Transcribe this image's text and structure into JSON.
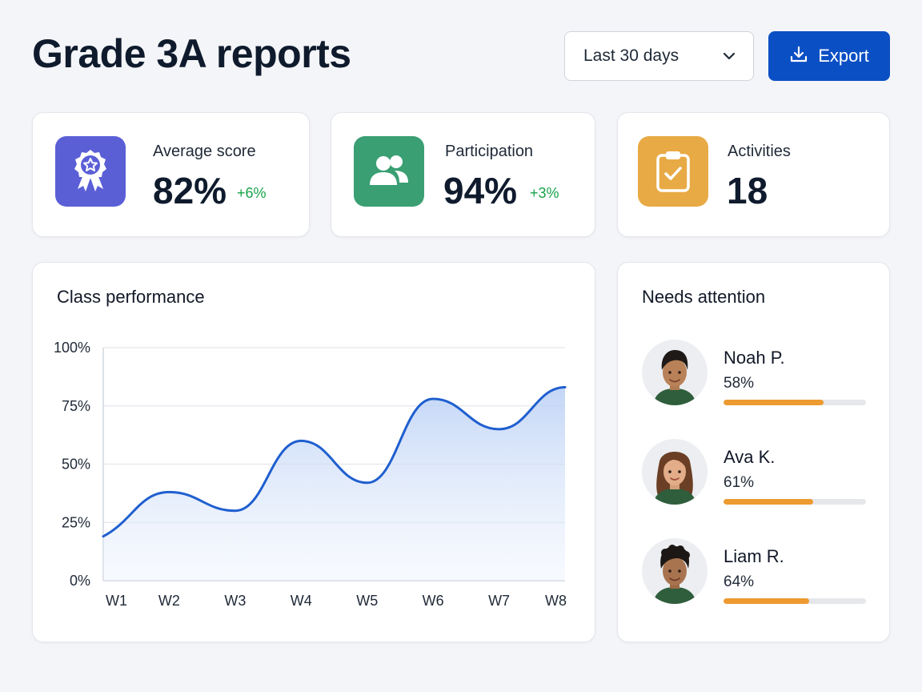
{
  "header": {
    "title": "Grade 3A reports",
    "range_select": "Last 30 days",
    "export_label": "Export"
  },
  "colors": {
    "primary": "#0b4fc4",
    "line": "#1f5fcf",
    "positive": "#16a34a",
    "bar": "#ed9a30"
  },
  "stats": [
    {
      "icon": "award-ribbon-icon",
      "icon_color": "#5b5fd6",
      "label": "Average score",
      "value": "82%",
      "delta": "+6%"
    },
    {
      "icon": "people-icon",
      "icon_color": "#3a9f73",
      "label": "Participation",
      "value": "94%",
      "delta": "+3%"
    },
    {
      "icon": "clipboard-check-icon",
      "icon_color": "#e8aa45",
      "label": "Activities",
      "value": "18"
    }
  ],
  "performance": {
    "title": "Class performance"
  },
  "chart_data": {
    "type": "area",
    "x": [
      "W1",
      "W2",
      "W3",
      "W4",
      "W5",
      "W6",
      "W7",
      "W8"
    ],
    "ylim": [
      0,
      100
    ],
    "yticks": [
      "0%",
      "25%",
      "50%",
      "75%",
      "100%"
    ],
    "grid": true,
    "series": [
      {
        "values": [
          19,
          38,
          30,
          60,
          42,
          78,
          65,
          83
        ]
      }
    ]
  },
  "attention": {
    "title": "Needs attention",
    "students": [
      {
        "name": "Noah P.",
        "score": "58%",
        "progress": 0.7
      },
      {
        "name": "Ava K.",
        "score": "61%",
        "progress": 0.63
      },
      {
        "name": "Liam R.",
        "score": "64%",
        "progress": 0.6
      }
    ]
  }
}
